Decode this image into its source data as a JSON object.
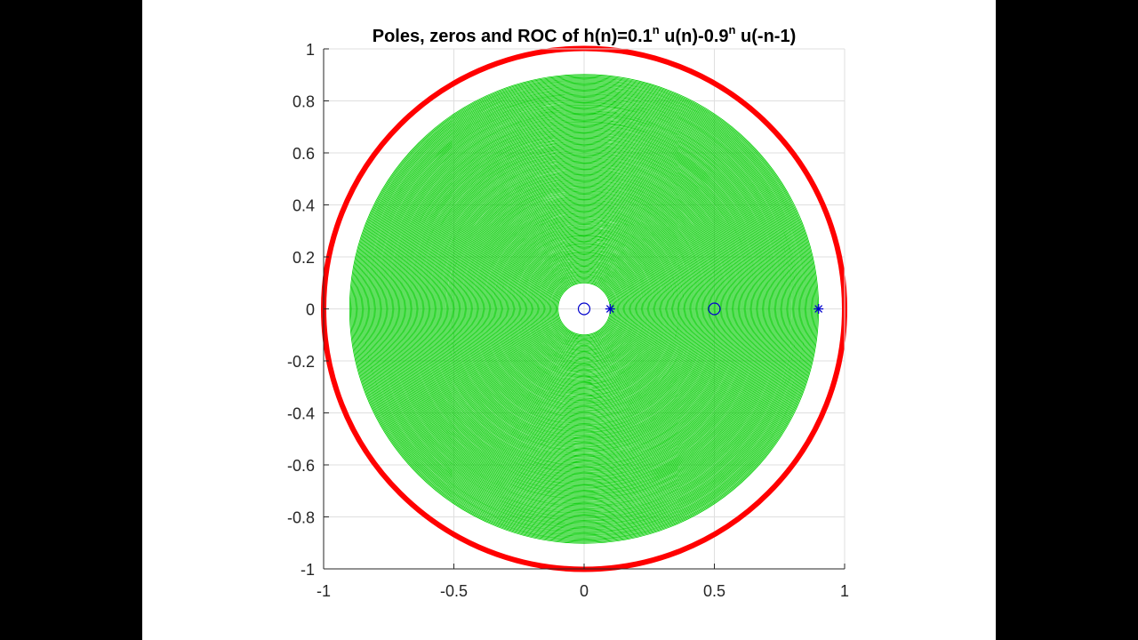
{
  "chart_data": {
    "type": "scatter",
    "title_parts": {
      "prefix": "Poles, zeros and ROC of h(n)=0.1",
      "sup1": "n",
      "mid": " u(n)-0.9",
      "sup2": "n",
      "suffix": " u(-n-1)"
    },
    "xlabel": "",
    "ylabel": "",
    "xlim": [
      -1,
      1
    ],
    "ylim": [
      -1,
      1
    ],
    "grid": true,
    "xticks": [
      -1,
      -0.5,
      0,
      0.5,
      1
    ],
    "xtick_labels": [
      "-1",
      "-0.5",
      "0",
      "0.5",
      "1"
    ],
    "yticks": [
      1,
      0.8,
      0.6,
      0.4,
      0.2,
      0,
      -0.2,
      -0.4,
      -0.6,
      -0.8,
      -1
    ],
    "ytick_labels": [
      "1",
      "0.8",
      "0.6",
      "0.4",
      "0.2",
      "0",
      "-0.2",
      "-0.4",
      "-0.6",
      "-0.8",
      "-1"
    ],
    "unit_circle": {
      "radius": 1,
      "color": "#ff0000"
    },
    "roc": {
      "inner_radius": 0.1,
      "outer_radius": 0.9,
      "color": "#00cc00"
    },
    "series": [
      {
        "name": "zeros",
        "marker": "o",
        "color": "#0000cc",
        "x": [
          0,
          0.5
        ],
        "y": [
          0,
          0
        ]
      },
      {
        "name": "poles",
        "marker": "*",
        "color": "#0000cc",
        "x": [
          0.1,
          0.9
        ],
        "y": [
          0,
          0
        ]
      }
    ]
  }
}
